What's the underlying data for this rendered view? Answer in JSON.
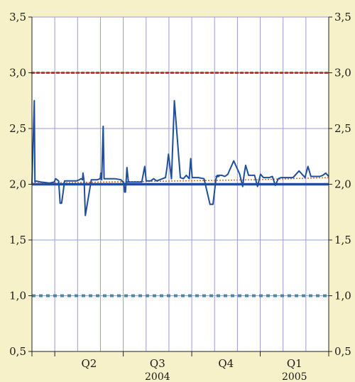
{
  "chart_data": {
    "type": "line",
    "ylim": [
      0.5,
      3.5
    ],
    "y_ticks": [
      "0,5",
      "1,0",
      "1,5",
      "2,0",
      "2,5",
      "3,0",
      "3,5"
    ],
    "y_tick_values": [
      0.5,
      1.0,
      1.5,
      2.0,
      2.5,
      3.0,
      3.5
    ],
    "x_quarter_labels": [
      "Q2",
      "Q3",
      "Q4",
      "Q1"
    ],
    "x_year_labels": [
      "2004",
      "2005"
    ],
    "grid": true,
    "colors": {
      "background": "#f6f1c8",
      "plot_bg": "#ffffff",
      "grid": "#9a9ad8",
      "main_line": "#1f4e9c",
      "thick_line": "#1f4e9c",
      "upper_dotted": "#c0392b",
      "lower_dashed": "#4a8aa0",
      "trend_dotted": "#d2691e"
    },
    "series": [
      {
        "style": "thick",
        "x": [
          0,
          1
        ],
        "values": [
          2.0,
          2.0
        ]
      },
      {
        "style": "dotted-red",
        "x": [
          0,
          1
        ],
        "values": [
          3.0,
          3.0
        ]
      },
      {
        "style": "dashed-teal",
        "x": [
          0,
          1
        ],
        "values": [
          1.0,
          1.0
        ]
      },
      {
        "style": "dotted-trend",
        "x": [
          0,
          0.25,
          0.5,
          0.75,
          1.0
        ],
        "values": [
          2.01,
          2.02,
          2.03,
          2.04,
          2.06
        ]
      },
      {
        "style": "main",
        "x": [
          0,
          0.008,
          0.01,
          0.012,
          0.03,
          0.06,
          0.075,
          0.08,
          0.09,
          0.095,
          0.1,
          0.11,
          0.13,
          0.15,
          0.16,
          0.165,
          0.17,
          0.172,
          0.176,
          0.18,
          0.2,
          0.22,
          0.23,
          0.232,
          0.235,
          0.24,
          0.243,
          0.246,
          0.25,
          0.28,
          0.3,
          0.31,
          0.312,
          0.315,
          0.32,
          0.325,
          0.33,
          0.32,
          0.33,
          0.34,
          0.37,
          0.38,
          0.385,
          0.39,
          0.4,
          0.41,
          0.42,
          0.45,
          0.455,
          0.46,
          0.47,
          0.48,
          0.5,
          0.51,
          0.52,
          0.53,
          0.535,
          0.54,
          0.55,
          0.55,
          0.56,
          0.58,
          0.6,
          0.61,
          0.62,
          0.625,
          0.63,
          0.62,
          0.63,
          0.635,
          0.64,
          0.65,
          0.66,
          0.68,
          0.7,
          0.71,
          0.715,
          0.72,
          0.73,
          0.74,
          0.75,
          0.76,
          0.77,
          0.78,
          0.79,
          0.8,
          0.81,
          0.82,
          0.83,
          0.84,
          0.85,
          0.86,
          0.87,
          0.88,
          0.9,
          0.92,
          0.93,
          0.94,
          0.95,
          0.96,
          0.97,
          0.98,
          0.99,
          1.0
        ],
        "values": [
          2.0,
          2.75,
          2.02,
          2.03,
          2.02,
          2.01,
          2.02,
          2.05,
          2.03,
          1.83,
          1.83,
          2.03,
          2.03,
          2.03,
          2.04,
          2.05,
          2.04,
          2.1,
          2.02,
          1.72,
          2.04,
          2.04,
          2.05,
          2.1,
          2.04,
          2.52,
          2.05,
          2.05,
          2.05,
          2.05,
          2.04,
          2.01,
          1.93,
          1.93,
          2.15,
          2.02,
          2.02,
          2.02,
          2.02,
          2.02,
          2.02,
          2.16,
          2.03,
          2.03,
          2.03,
          2.05,
          2.03,
          2.06,
          2.15,
          2.27,
          2.05,
          2.75,
          2.06,
          2.05,
          2.08,
          2.05,
          2.23,
          2.06,
          2.06,
          2.06,
          2.06,
          2.05,
          1.82,
          1.82,
          2.05,
          2.08,
          2.07,
          2.07,
          2.08,
          2.08,
          2.08,
          2.07,
          2.09,
          2.21,
          2.09,
          1.98,
          2.09,
          2.17,
          2.08,
          2.08,
          2.08,
          1.98,
          2.09,
          2.06,
          2.06,
          2.06,
          2.07,
          1.99,
          2.05,
          2.06,
          2.06,
          2.06,
          2.06,
          2.06,
          2.12,
          2.06,
          2.16,
          2.07,
          2.07,
          2.07,
          2.07,
          2.08,
          2.1,
          2.07
        ]
      }
    ]
  }
}
